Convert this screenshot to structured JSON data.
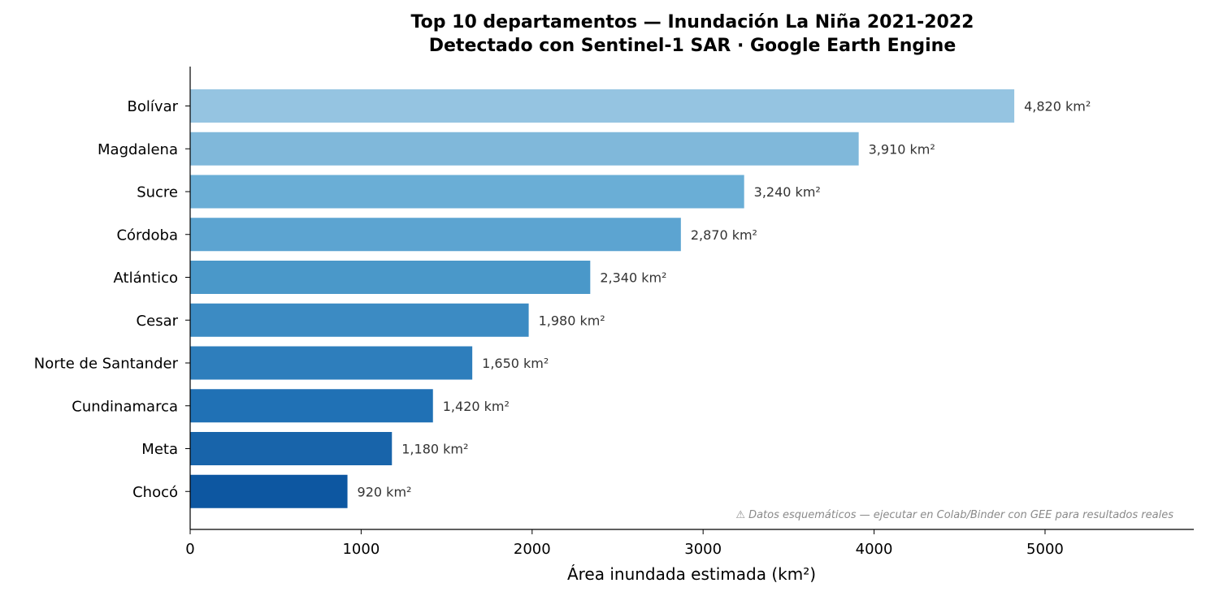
{
  "chart_data": {
    "type": "bar",
    "orientation": "horizontal",
    "title": "Top 10 departamentos — Inundación La Niña 2021-2022",
    "subtitle": "Detectado con Sentinel-1 SAR · Google Earth Engine",
    "xlabel": "Área inundada estimada (km²)",
    "ylabel": "",
    "xlim": [
      0,
      5870
    ],
    "xticks": [
      0,
      1000,
      2000,
      3000,
      4000,
      5000
    ],
    "grid": false,
    "categories": [
      "Bolívar",
      "Magdalena",
      "Sucre",
      "Córdoba",
      "Atlántico",
      "Cesar",
      "Norte de Santander",
      "Cundinamarca",
      "Meta",
      "Chocó"
    ],
    "values": [
      4820,
      3910,
      3240,
      2870,
      2340,
      1980,
      1650,
      1420,
      1180,
      920
    ],
    "value_labels": [
      "4,820 km²",
      "3,910 km²",
      "3,240 km²",
      "2,870 km²",
      "2,340 km²",
      "1,980 km²",
      "1,650 km²",
      "1,420 km²",
      "1,180 km²",
      "920 km²"
    ],
    "colors": [
      "#95c4e1",
      "#80b8da",
      "#6aaed6",
      "#5ca4d1",
      "#4a98c9",
      "#3c8bc3",
      "#2e7ebc",
      "#2071b5",
      "#1864aa",
      "#0d57a1"
    ],
    "annotation": "⚠ Datos esquemáticos — ejecutar en Colab/Binder con GEE para resultados reales"
  }
}
